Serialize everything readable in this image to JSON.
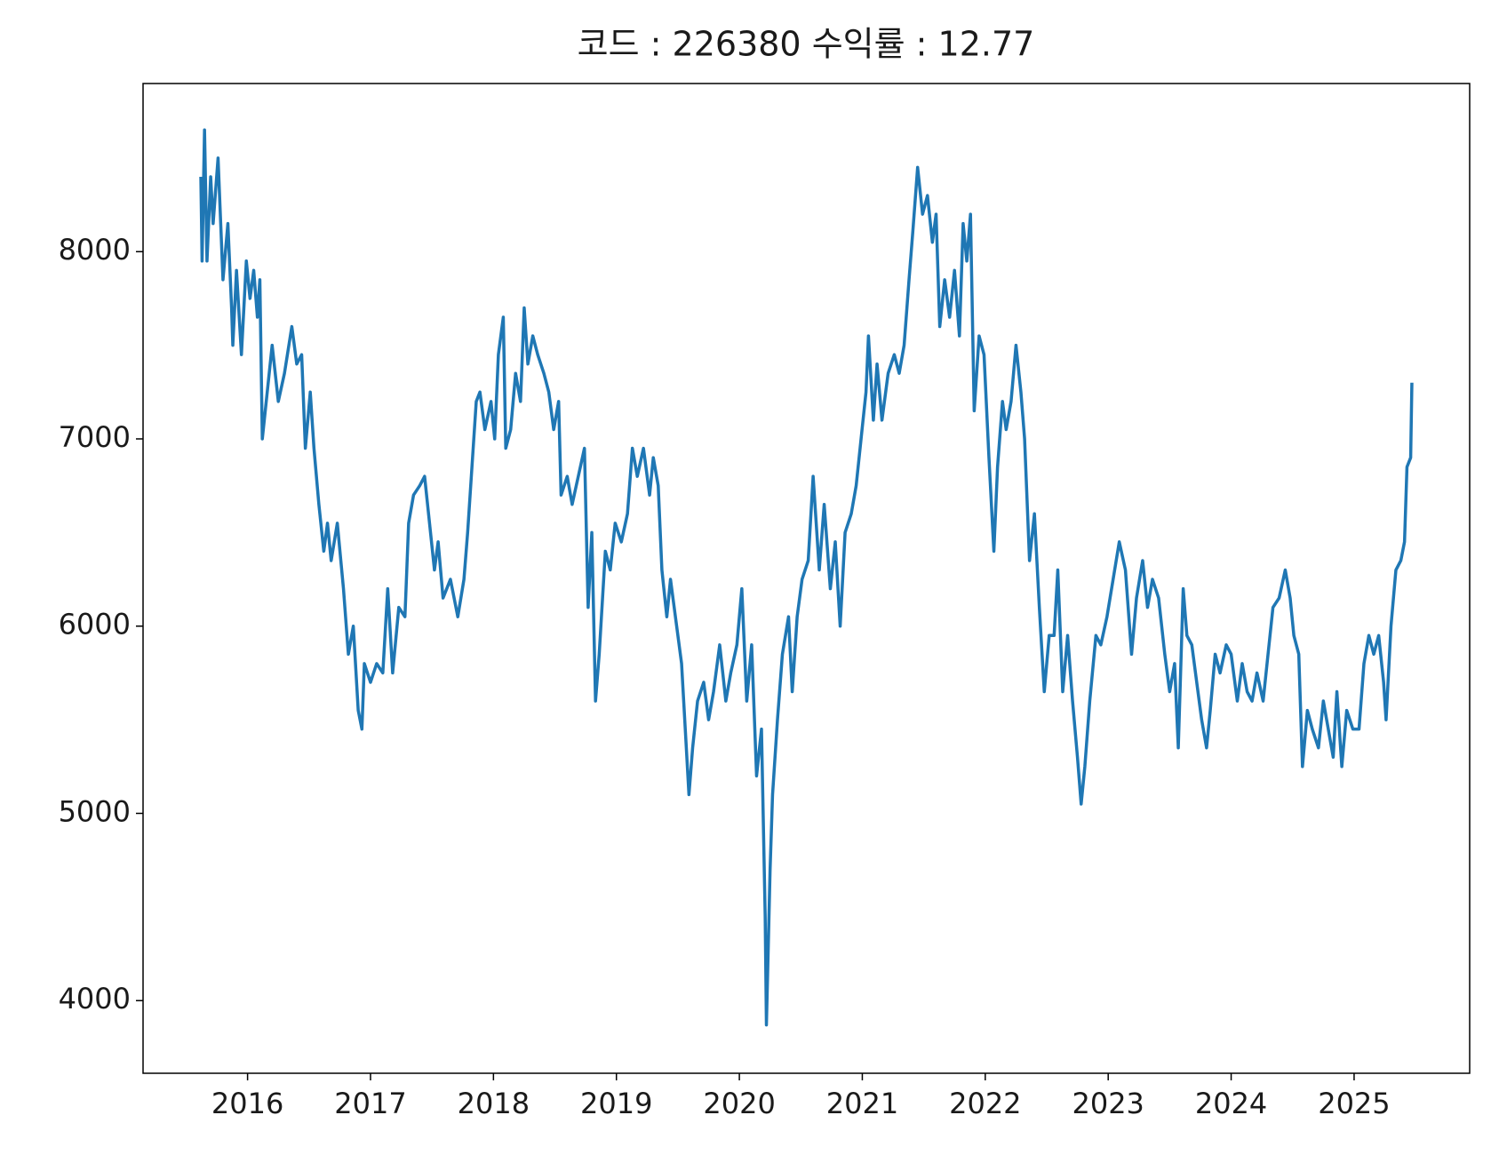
{
  "chart_data": {
    "type": "line",
    "title": "코드 : 226380 수익률 : 12.77",
    "color": "#1f77b4",
    "xlim": [
      2015.15,
      2025.94
    ],
    "xticks": [
      2016,
      2017,
      2018,
      2019,
      2020,
      2021,
      2022,
      2023,
      2024,
      2025
    ],
    "ylim": [
      3612,
      8898
    ],
    "yticks": [
      4000,
      5000,
      6000,
      7000,
      8000
    ],
    "x": [
      2015.62,
      2015.63,
      2015.65,
      2015.67,
      2015.7,
      2015.72,
      2015.76,
      2015.8,
      2015.84,
      2015.87,
      2015.88,
      2015.91,
      2015.95,
      2015.99,
      2016.02,
      2016.05,
      2016.08,
      2016.1,
      2016.12,
      2016.16,
      2016.2,
      2016.25,
      2016.3,
      2016.36,
      2016.4,
      2016.44,
      2016.47,
      2016.51,
      2016.54,
      2016.58,
      2016.62,
      2016.65,
      2016.68,
      2016.73,
      2016.78,
      2016.82,
      2016.86,
      2016.9,
      2016.93,
      2016.95,
      2017.0,
      2017.05,
      2017.1,
      2017.14,
      2017.18,
      2017.23,
      2017.28,
      2017.31,
      2017.35,
      2017.4,
      2017.44,
      2017.48,
      2017.52,
      2017.55,
      2017.59,
      2017.65,
      2017.71,
      2017.76,
      2017.79,
      2017.83,
      2017.86,
      2017.89,
      2017.93,
      2017.98,
      2018.01,
      2018.04,
      2018.08,
      2018.1,
      2018.14,
      2018.18,
      2018.22,
      2018.25,
      2018.28,
      2018.32,
      2018.36,
      2018.41,
      2018.45,
      2018.49,
      2018.53,
      2018.55,
      2018.6,
      2018.64,
      2018.69,
      2018.74,
      2018.77,
      2018.8,
      2018.83,
      2018.86,
      2018.91,
      2018.95,
      2018.99,
      2019.04,
      2019.09,
      2019.13,
      2019.17,
      2019.22,
      2019.27,
      2019.3,
      2019.34,
      2019.37,
      2019.41,
      2019.44,
      2019.49,
      2019.53,
      2019.56,
      2019.59,
      2019.62,
      2019.66,
      2019.71,
      2019.75,
      2019.79,
      2019.84,
      2019.89,
      2019.93,
      2019.98,
      2020.02,
      2020.06,
      2020.1,
      2020.14,
      2020.18,
      2020.21,
      2020.22,
      2020.25,
      2020.27,
      2020.31,
      2020.35,
      2020.4,
      2020.43,
      2020.47,
      2020.51,
      2020.56,
      2020.6,
      2020.65,
      2020.69,
      2020.74,
      2020.78,
      2020.82,
      2020.86,
      2020.91,
      2020.95,
      2020.99,
      2021.03,
      2021.05,
      2021.09,
      2021.12,
      2021.16,
      2021.21,
      2021.26,
      2021.3,
      2021.34,
      2021.38,
      2021.41,
      2021.45,
      2021.49,
      2021.53,
      2021.57,
      2021.6,
      2021.63,
      2021.67,
      2021.71,
      2021.75,
      2021.79,
      2021.82,
      2021.85,
      2021.88,
      2021.91,
      2021.95,
      2021.99,
      2022.03,
      2022.07,
      2022.1,
      2022.14,
      2022.17,
      2022.21,
      2022.25,
      2022.29,
      2022.32,
      2022.36,
      2022.4,
      2022.44,
      2022.48,
      2022.52,
      2022.56,
      2022.59,
      2022.63,
      2022.67,
      2022.71,
      2022.75,
      2022.78,
      2022.81,
      2022.85,
      2022.9,
      2022.94,
      2022.99,
      2023.04,
      2023.09,
      2023.14,
      2023.19,
      2023.23,
      2023.28,
      2023.32,
      2023.36,
      2023.41,
      2023.46,
      2023.5,
      2023.54,
      2023.57,
      2023.61,
      2023.64,
      2023.68,
      2023.72,
      2023.76,
      2023.8,
      2023.83,
      2023.87,
      2023.91,
      2023.96,
      2024.0,
      2024.05,
      2024.09,
      2024.13,
      2024.17,
      2024.21,
      2024.26,
      2024.3,
      2024.34,
      2024.39,
      2024.44,
      2024.48,
      2024.51,
      2024.55,
      2024.58,
      2024.62,
      2024.66,
      2024.71,
      2024.75,
      2024.79,
      2024.83,
      2024.86,
      2024.9,
      2024.94,
      2024.99,
      2025.04,
      2025.08,
      2025.12,
      2025.16,
      2025.2,
      2025.24,
      2025.26,
      2025.3,
      2025.34,
      2025.38,
      2025.41,
      2025.43,
      2025.46,
      2025.47
    ],
    "values": [
      8400,
      7950,
      8650,
      7950,
      8400,
      8150,
      8500,
      7850,
      8150,
      7700,
      7500,
      7900,
      7450,
      7950,
      7750,
      7900,
      7650,
      7850,
      7000,
      7250,
      7500,
      7200,
      7350,
      7600,
      7400,
      7450,
      6950,
      7250,
      6950,
      6650,
      6400,
      6550,
      6350,
      6550,
      6200,
      5850,
      6000,
      5550,
      5450,
      5800,
      5700,
      5800,
      5750,
      6200,
      5750,
      6100,
      6050,
      6550,
      6700,
      6750,
      6800,
      6550,
      6300,
      6450,
      6150,
      6250,
      6050,
      6250,
      6500,
      6900,
      7200,
      7250,
      7050,
      7200,
      7000,
      7450,
      7650,
      6950,
      7050,
      7350,
      7200,
      7700,
      7400,
      7550,
      7450,
      7350,
      7250,
      7050,
      7200,
      6700,
      6800,
      6650,
      6800,
      6950,
      6100,
      6500,
      5600,
      5850,
      6400,
      6300,
      6550,
      6450,
      6600,
      6950,
      6800,
      6950,
      6700,
      6900,
      6750,
      6300,
      6050,
      6250,
      6000,
      5800,
      5450,
      5100,
      5350,
      5600,
      5700,
      5500,
      5650,
      5900,
      5600,
      5750,
      5900,
      6200,
      5600,
      5900,
      5200,
      5450,
      4450,
      3870,
      4700,
      5100,
      5500,
      5850,
      6050,
      5650,
      6050,
      6250,
      6350,
      6800,
      6300,
      6650,
      6200,
      6450,
      6000,
      6500,
      6600,
      6750,
      7000,
      7250,
      7550,
      7100,
      7400,
      7100,
      7350,
      7450,
      7350,
      7500,
      7850,
      8100,
      8450,
      8200,
      8300,
      8050,
      8200,
      7600,
      7850,
      7650,
      7900,
      7550,
      8150,
      7950,
      8200,
      7150,
      7550,
      7450,
      6900,
      6400,
      6850,
      7200,
      7050,
      7200,
      7500,
      7250,
      7000,
      6350,
      6600,
      6100,
      5650,
      5950,
      5950,
      6300,
      5650,
      5950,
      5600,
      5300,
      5050,
      5250,
      5600,
      5950,
      5900,
      6050,
      6250,
      6450,
      6300,
      5850,
      6150,
      6350,
      6100,
      6250,
      6150,
      5850,
      5650,
      5800,
      5350,
      6200,
      5950,
      5900,
      5700,
      5500,
      5350,
      5550,
      5850,
      5750,
      5900,
      5850,
      5600,
      5800,
      5650,
      5600,
      5750,
      5600,
      5850,
      6100,
      6150,
      6300,
      6150,
      5950,
      5850,
      5250,
      5550,
      5450,
      5350,
      5600,
      5450,
      5300,
      5650,
      5250,
      5550,
      5450,
      5450,
      5800,
      5950,
      5850,
      5950,
      5700,
      5500,
      6000,
      6300,
      6350,
      6450,
      6850,
      6900,
      7300
    ]
  }
}
